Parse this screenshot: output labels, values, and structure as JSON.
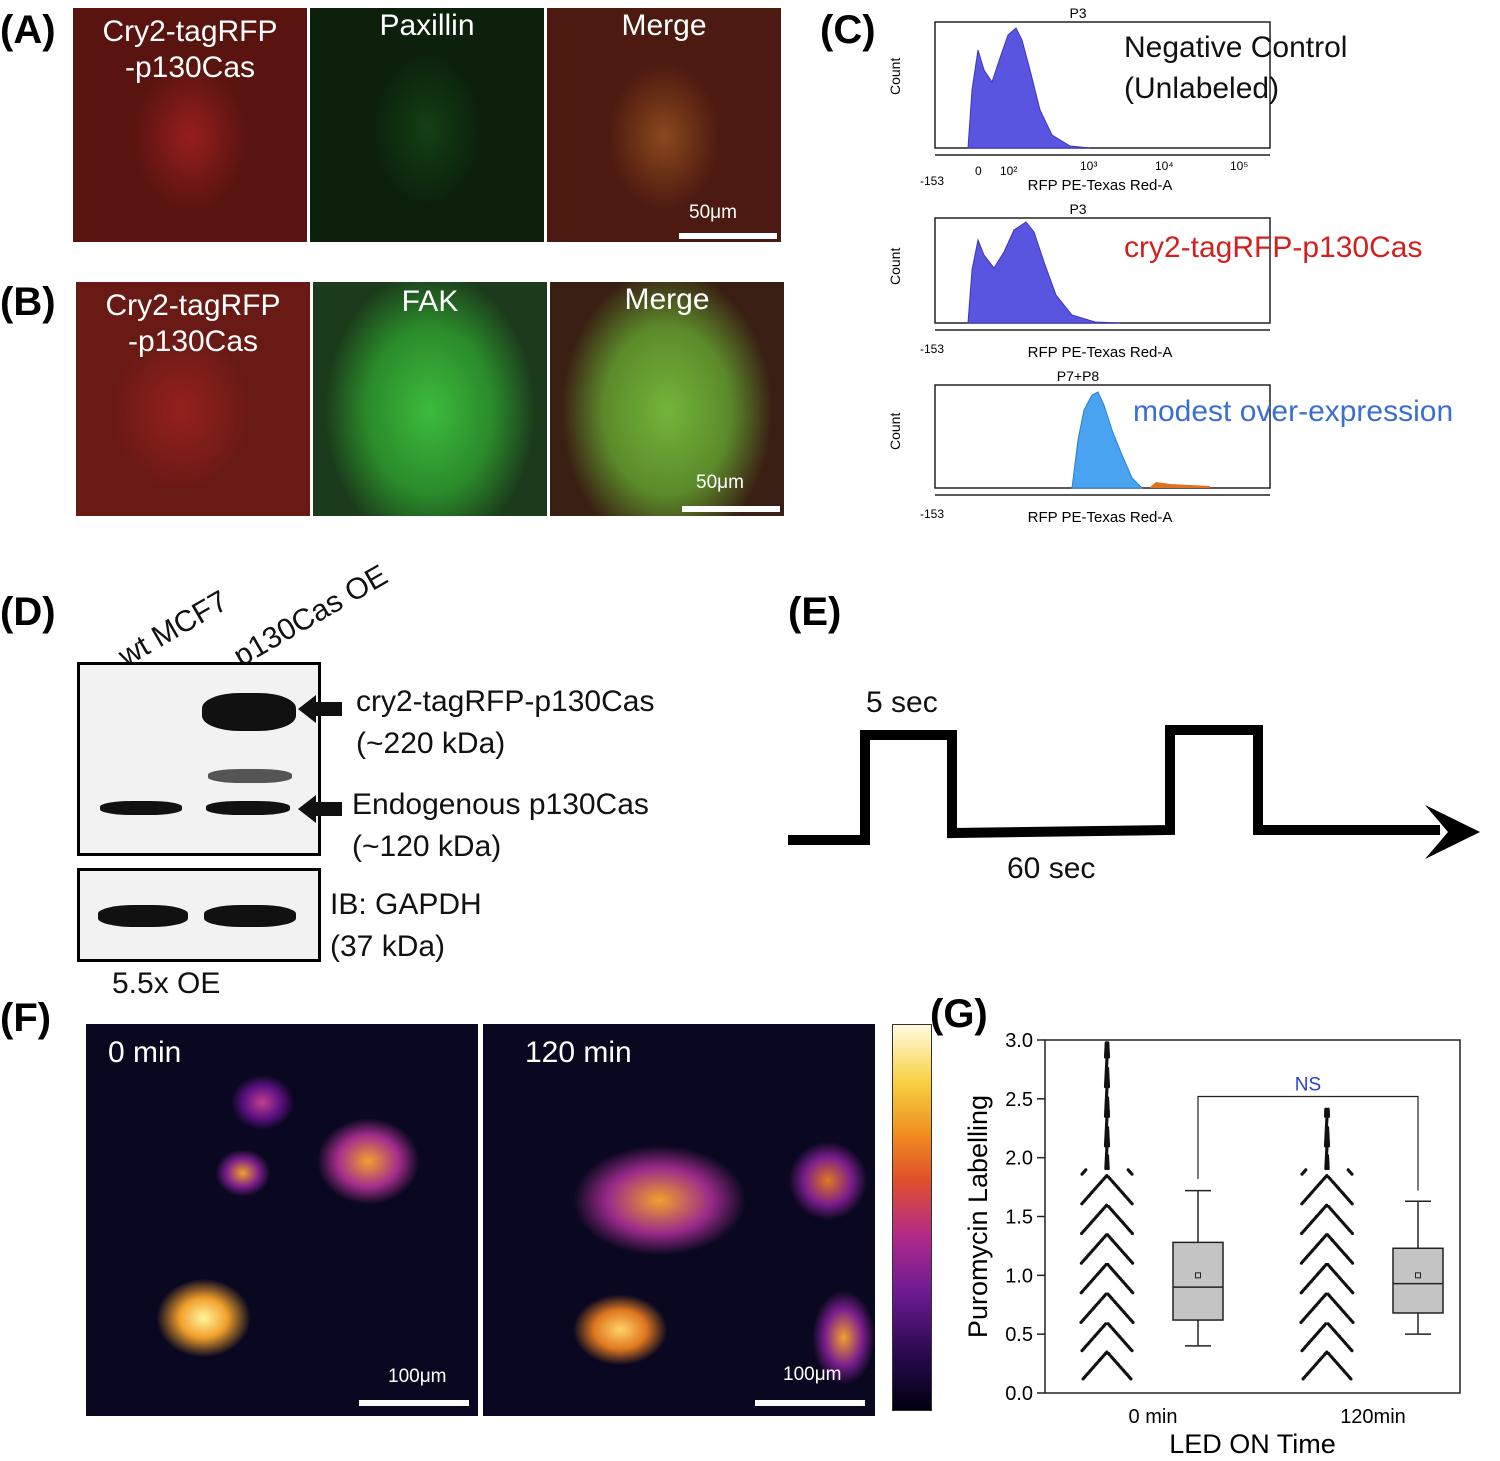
{
  "panels": {
    "A": {
      "letter": "(A)",
      "labels": [
        "Cry2-tagRFP\n-p130Cas",
        "Paxillin",
        "Merge"
      ],
      "scale": "50μm"
    },
    "B": {
      "letter": "(B)",
      "labels": [
        "Cry2-tagRFP\n-p130Cas",
        "FAK",
        "Merge"
      ],
      "scale": "50μm"
    },
    "C": {
      "letter": "(C)",
      "plots": [
        {
          "gate": "P3",
          "annotation": "Negative Control\n(Unlabeled)",
          "ylabel": "Count",
          "xlabel": "RFP PE-Texas Red-A",
          "annotation_color": "#111111"
        },
        {
          "gate": "P3",
          "annotation": "cry2-tagRFP-p130Cas",
          "ylabel": "Count",
          "xlabel": "RFP PE-Texas Red-A",
          "annotation_color": "#d21f1f"
        },
        {
          "gate": "P7+P8",
          "annotation": "modest over-expression",
          "ylabel": "Count",
          "xlabel": "RFP PE-Texas Red-A",
          "annotation_color": "#3a6fd1"
        }
      ],
      "xticks": [
        "-153",
        "0",
        "10²",
        "10³",
        "10⁴",
        "10⁵"
      ]
    },
    "D": {
      "letter": "(D)",
      "lanes": [
        "wt MCF7",
        "p130Cas OE"
      ],
      "bands": [
        {
          "name": "cry2-tagRFP-p130Cas",
          "size": "(~220 kDa)"
        },
        {
          "name": "Endogenous p130Cas",
          "size": "(~120 kDa)"
        }
      ],
      "loading": {
        "name": "IB: GAPDH",
        "size": "(37 kDa)"
      },
      "fold": "5.5x OE"
    },
    "E": {
      "letter": "(E)",
      "pulse_label": "5 sec",
      "interval_label": "60 sec"
    },
    "F": {
      "letter": "(F)",
      "timepoints": [
        "0 min",
        "120 min"
      ],
      "scale": "100μm"
    },
    "G": {
      "letter": "(G)",
      "sig_label": "NS"
    }
  },
  "chart_data": {
    "type": "box",
    "title": "",
    "xlabel": "LED ON Time",
    "ylabel": "Puromycin Labelling",
    "categories": [
      "0 min",
      "120min"
    ],
    "ylim": [
      0.0,
      3.0
    ],
    "yticks": [
      "0.0",
      "0.5",
      "1.0",
      "1.5",
      "2.0",
      "2.5",
      "3.0"
    ],
    "series": [
      {
        "name": "0 min",
        "q1": 0.62,
        "median": 0.9,
        "q3": 1.28,
        "whisker_low": 0.4,
        "whisker_high": 1.72,
        "mean": 1.0,
        "min": 0.12,
        "max": 2.98
      },
      {
        "name": "120min",
        "q1": 0.68,
        "median": 0.93,
        "q3": 1.23,
        "whisker_low": 0.5,
        "whisker_high": 1.63,
        "mean": 1.0,
        "min": 0.12,
        "max": 2.42
      }
    ],
    "annotation": "NS",
    "grid": false
  }
}
